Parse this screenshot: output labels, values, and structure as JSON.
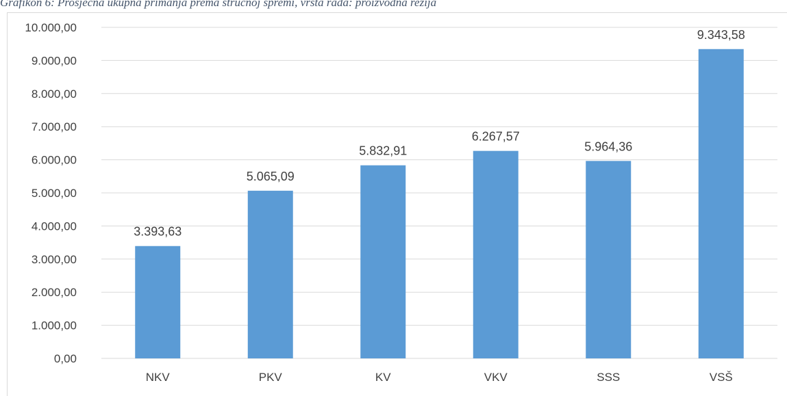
{
  "chart_data": {
    "type": "bar",
    "title": "Grafikon 6: Prosječna ukupna primanja prema stručnoj spremi, vrsta rada: proizvodna režija",
    "categories": [
      "NKV",
      "PKV",
      "KV",
      "VKV",
      "SSS",
      "VSŠ"
    ],
    "values": [
      3393.63,
      5065.09,
      5832.91,
      6267.57,
      5964.36,
      9343.58
    ],
    "value_labels": [
      "3.393,63",
      "5.065,09",
      "5.832,91",
      "6.267,57",
      "5.964,36",
      "9.343,58"
    ],
    "color": "#5b9bd5",
    "ylim": [
      0,
      10000
    ],
    "yticks": [
      {
        "value": 0,
        "label": "0,00"
      },
      {
        "value": 1000,
        "label": "1.000,00"
      },
      {
        "value": 2000,
        "label": "2.000,00"
      },
      {
        "value": 3000,
        "label": "3.000,00"
      },
      {
        "value": 4000,
        "label": "4.000,00"
      },
      {
        "value": 5000,
        "label": "5.000,00"
      },
      {
        "value": 6000,
        "label": "6.000,00"
      },
      {
        "value": 7000,
        "label": "7.000,00"
      },
      {
        "value": 8000,
        "label": "8.000,00"
      },
      {
        "value": 9000,
        "label": "9.000,00"
      },
      {
        "value": 10000,
        "label": "10.000,00"
      }
    ],
    "grid": true
  }
}
